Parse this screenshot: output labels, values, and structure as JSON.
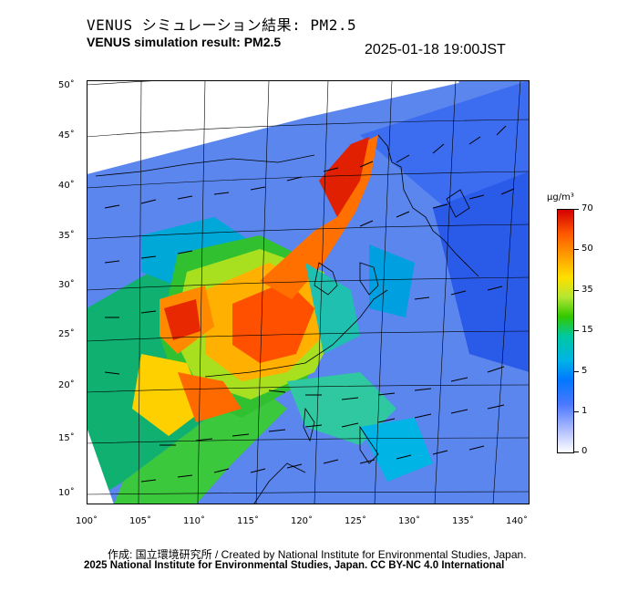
{
  "header": {
    "title_ja": "VENUS シミュレーション結果: PM2.5",
    "title_en": "VENUS simulation result: PM2.5",
    "timestamp": "2025-01-18 19:00JST"
  },
  "map": {
    "description_layers": [
      "pm25-concentration-field",
      "wind-vectors",
      "coastlines",
      "lat-lon-grid"
    ],
    "lat_labels": [
      "50˚",
      "45˚",
      "40˚",
      "35˚",
      "30˚",
      "25˚",
      "20˚",
      "15˚",
      "10˚"
    ],
    "lon_labels": [
      "100˚",
      "105˚",
      "110˚",
      "115˚",
      "120˚",
      "125˚",
      "130˚",
      "135˚",
      "140˚"
    ]
  },
  "colorbar": {
    "unit": "µg/m³",
    "labels": [
      "70",
      "50",
      "35",
      "15",
      "5",
      "1",
      "0"
    ],
    "colors": {
      "high": "#d40000",
      "orange": "#ffa500",
      "yellow": "#ffe000",
      "green": "#32c800",
      "cyan": "#00b4e6",
      "blue": "#0078ff",
      "low": "#ffffff"
    }
  },
  "footer": {
    "credit_ja_en": "作成: 国立環境研究所 / Created by National Institute for Environmental Studies, Japan.",
    "copyright": "2025 National Institute for Environmental Studies, Japan. CC BY-NC 4.0 International"
  }
}
